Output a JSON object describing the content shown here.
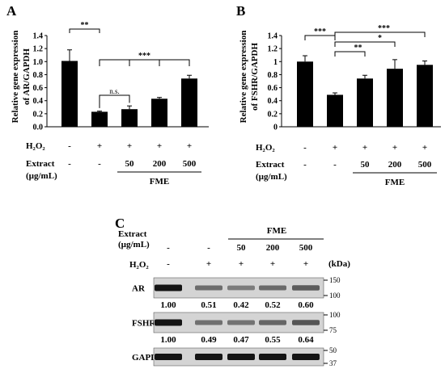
{
  "chart_data": [
    {
      "panel": "A",
      "type": "bar",
      "ylabel": [
        "Relative gene expression",
        "of AR/GAPDH"
      ],
      "ylim": [
        0,
        1.4
      ],
      "yticks": [
        "0.0",
        "0.2",
        "0.4",
        "0.6",
        "0.8",
        "1.0",
        "1.2",
        "1.4"
      ],
      "categories": [
        "1",
        "2",
        "3",
        "4",
        "5"
      ],
      "values": [
        1.01,
        0.23,
        0.27,
        0.43,
        0.74
      ],
      "errors": [
        0.17,
        0.01,
        0.05,
        0.02,
        0.05
      ],
      "h2o2_label": "H₂O₂",
      "h2o2": [
        "-",
        "+",
        "+",
        "+",
        "+"
      ],
      "extract_label": [
        "Extract",
        "(µg/mL)"
      ],
      "extract": [
        "-",
        "-",
        "50",
        "200",
        "500"
      ],
      "group_label": "FME",
      "annotations": [
        {
          "text": "**",
          "from": 0,
          "to": 1
        },
        {
          "text": "n.s.",
          "from": 1,
          "to": 2
        },
        {
          "text": "***",
          "from": 1,
          "to": 4
        }
      ]
    },
    {
      "panel": "B",
      "type": "bar",
      "ylabel": [
        "Relative gene expression",
        "of FSHR/GAPDH"
      ],
      "ylim": [
        0,
        1.4
      ],
      "yticks": [
        "0",
        "0.2",
        "0.4",
        "0.6",
        "0.8",
        "1",
        "1.2",
        "1.4"
      ],
      "categories": [
        "1",
        "2",
        "3",
        "4",
        "5"
      ],
      "values": [
        1.0,
        0.49,
        0.74,
        0.89,
        0.95
      ],
      "errors": [
        0.09,
        0.03,
        0.05,
        0.14,
        0.06
      ],
      "h2o2_label": "H₂O₂",
      "h2o2": [
        "-",
        "+",
        "+",
        "+",
        "+"
      ],
      "extract_label": [
        "Extract",
        "(µg/mL)"
      ],
      "extract": [
        "-",
        "-",
        "50",
        "200",
        "500"
      ],
      "group_label": "FME",
      "annotations": [
        {
          "text": "***",
          "from": 0,
          "to": 1
        },
        {
          "text": "**",
          "from": 1,
          "to": 2
        },
        {
          "text": "*",
          "from": 1,
          "to": 3
        },
        {
          "text": "***",
          "from": 1,
          "to": 4
        }
      ]
    }
  ],
  "western": {
    "panel": "C",
    "group_label": "FME",
    "extract_label": [
      "Extract",
      "(µg/mL)"
    ],
    "extract": [
      "-",
      "-",
      "50",
      "200",
      "500"
    ],
    "h2o2_label": "H₂O₂",
    "h2o2": [
      "-",
      "+",
      "+",
      "+",
      "+"
    ],
    "kda_label": "(kDa)",
    "blots": [
      {
        "name": "AR",
        "markers": [
          "150",
          "100"
        ],
        "values": [
          "1.00",
          "0.51",
          "0.42",
          "0.52",
          "0.60"
        ],
        "intensity": [
          1.0,
          0.51,
          0.42,
          0.52,
          0.6
        ]
      },
      {
        "name": "FSHR",
        "markers": [
          "100",
          "75"
        ],
        "values": [
          "1.00",
          "0.49",
          "0.47",
          "0.55",
          "0.64"
        ],
        "intensity": [
          1.0,
          0.49,
          0.47,
          0.55,
          0.64
        ]
      },
      {
        "name": "GAPDH",
        "markers": [
          "50",
          "37"
        ],
        "values": [],
        "intensity": [
          1.0,
          1.0,
          1.0,
          1.0,
          1.0
        ]
      }
    ]
  }
}
